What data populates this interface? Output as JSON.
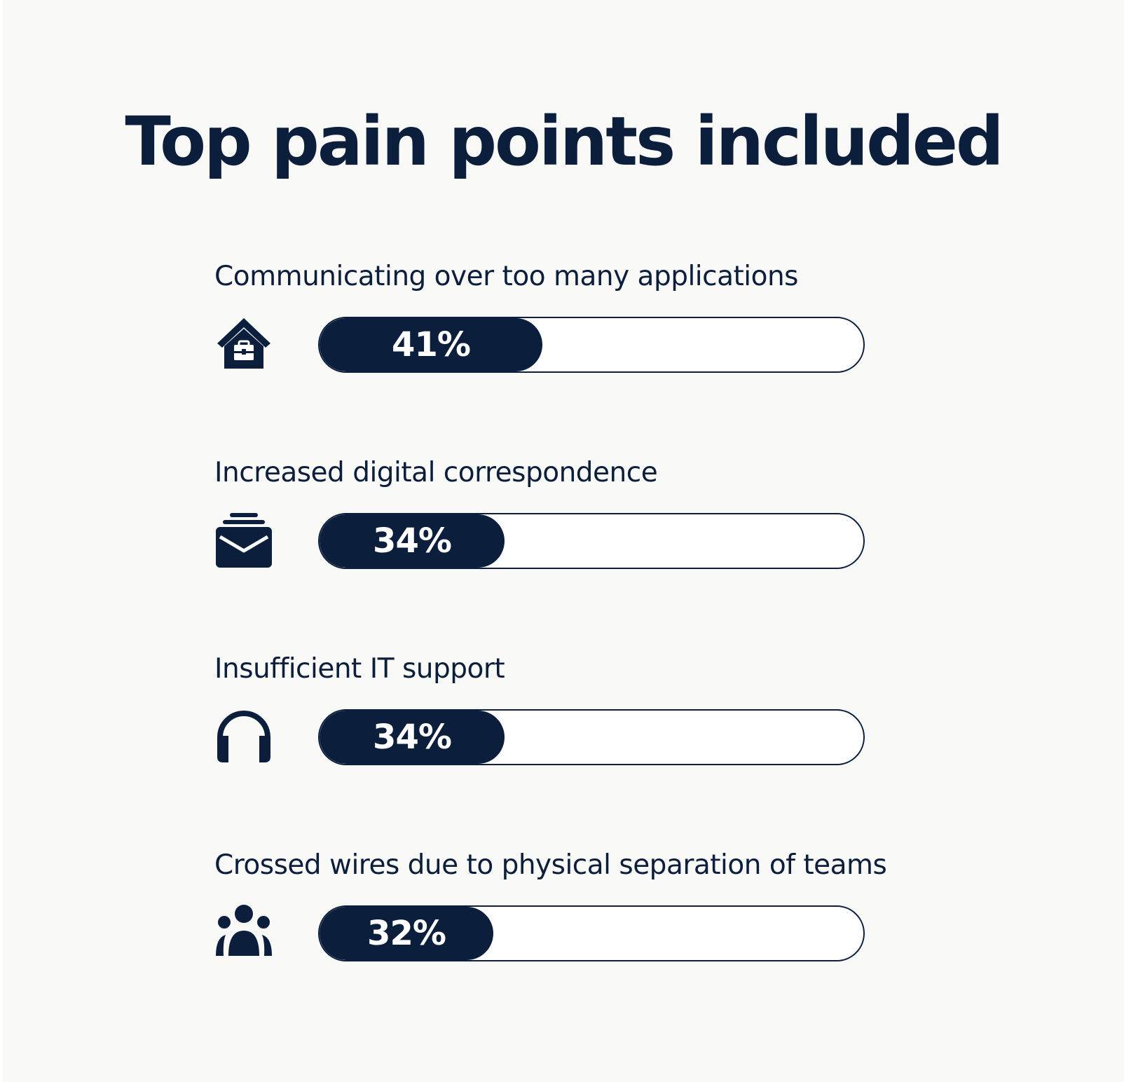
{
  "title": "Top pain points included",
  "colors": {
    "background": "#f9f9f8",
    "accent": "#0b1f3d",
    "track": "#ffffff"
  },
  "chart_data": {
    "type": "bar",
    "title": "Top pain points included",
    "categories": [
      "Communicating over too many applications",
      "Increased digital correspondence",
      "Insufficient IT support",
      "Crossed wires due to physical separation of teams"
    ],
    "values": [
      41,
      34,
      34,
      32
    ],
    "value_labels": [
      "41%",
      "34%",
      "34%",
      "32%"
    ],
    "icons": [
      "home-office-icon",
      "inbox-icon",
      "headphones-icon",
      "team-icon"
    ],
    "orientation": "horizontal",
    "xlim": [
      0,
      100
    ],
    "grid": false,
    "legend": false
  }
}
